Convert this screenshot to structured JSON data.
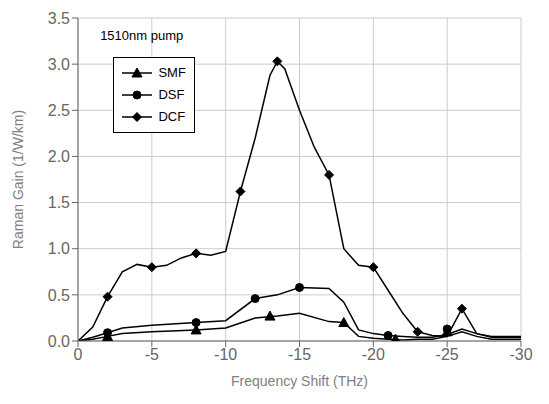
{
  "chart_data": {
    "type": "line",
    "annotation": "1510nm pump",
    "xlabel": "Frequency Shift (THz)",
    "ylabel": "Raman Gain (1/W/km)",
    "xlim": [
      0,
      -30
    ],
    "ylim": [
      0,
      3.5
    ],
    "xticks": [
      0,
      -5,
      -10,
      -15,
      -20,
      -25,
      -30
    ],
    "yticks": [
      {
        "value": 0,
        "label": "0.0"
      },
      0.5,
      {
        "value": 1,
        "label": "1.0"
      },
      1.5,
      {
        "value": 2,
        "label": "2.0"
      },
      2.5,
      {
        "value": 3,
        "label": "3.0"
      },
      3.5
    ],
    "grid": true,
    "legend": "upper left",
    "series": [
      {
        "name": "SMF",
        "color": "black",
        "marker": "triangle",
        "x": [
          0,
          -1,
          -2,
          -3,
          -5,
          -8,
          -10,
          -12,
          -13.5,
          -15,
          -17,
          -18,
          -19,
          -20,
          -21,
          -22,
          -23,
          -24,
          -25,
          -26,
          -27,
          -28,
          -30
        ],
        "values": [
          0.0,
          0.02,
          0.05,
          0.08,
          0.1,
          0.12,
          0.14,
          0.25,
          0.27,
          0.3,
          0.21,
          0.2,
          0.05,
          0.03,
          0.02,
          0.01,
          0.02,
          0.02,
          0.05,
          0.1,
          0.05,
          0.02,
          0.02
        ],
        "marker_x": [
          -2,
          -8,
          -13,
          -18,
          -21.5,
          -25
        ],
        "marker_values": [
          0.05,
          0.12,
          0.27,
          0.2,
          0.02,
          0.1
        ]
      },
      {
        "name": "DSF",
        "color": "black",
        "marker": "circle",
        "x": [
          0,
          -1,
          -2,
          -3,
          -5,
          -8,
          -10,
          -12,
          -13.5,
          -15,
          -17,
          -18,
          -19,
          -20,
          -21,
          -22,
          -23,
          -24,
          -25,
          -26,
          -27,
          -28,
          -30
        ],
        "values": [
          0.0,
          0.04,
          0.09,
          0.14,
          0.17,
          0.2,
          0.22,
          0.46,
          0.5,
          0.58,
          0.57,
          0.42,
          0.12,
          0.08,
          0.06,
          0.05,
          0.04,
          0.04,
          0.07,
          0.13,
          0.08,
          0.04,
          0.04
        ],
        "marker_x": [
          -2,
          -8,
          -12,
          -15,
          -21,
          -25
        ],
        "marker_values": [
          0.09,
          0.2,
          0.46,
          0.58,
          0.06,
          0.13
        ]
      },
      {
        "name": "DCF",
        "color": "black",
        "marker": "diamond",
        "x": [
          0,
          -1,
          -2,
          -3,
          -4,
          -5,
          -6,
          -7,
          -8,
          -9,
          -10,
          -11,
          -12,
          -13,
          -13.5,
          -14,
          -15,
          -16,
          -17,
          -18,
          -19,
          -20,
          -21,
          -22,
          -23,
          -24,
          -25,
          -26,
          -27,
          -28,
          -30
        ],
        "values": [
          0.0,
          0.15,
          0.48,
          0.75,
          0.83,
          0.8,
          0.82,
          0.9,
          0.95,
          0.93,
          0.97,
          1.62,
          2.2,
          2.88,
          3.03,
          2.95,
          2.5,
          2.1,
          1.8,
          1.0,
          0.82,
          0.8,
          0.55,
          0.3,
          0.1,
          0.06,
          0.05,
          0.35,
          0.08,
          0.05,
          0.05
        ],
        "marker_x": [
          -2,
          -5,
          -8,
          -11,
          -13.5,
          -17,
          -20,
          -23,
          -26
        ],
        "marker_values": [
          0.48,
          0.8,
          0.95,
          1.62,
          3.03,
          1.8,
          0.8,
          0.1,
          0.35
        ]
      }
    ]
  }
}
